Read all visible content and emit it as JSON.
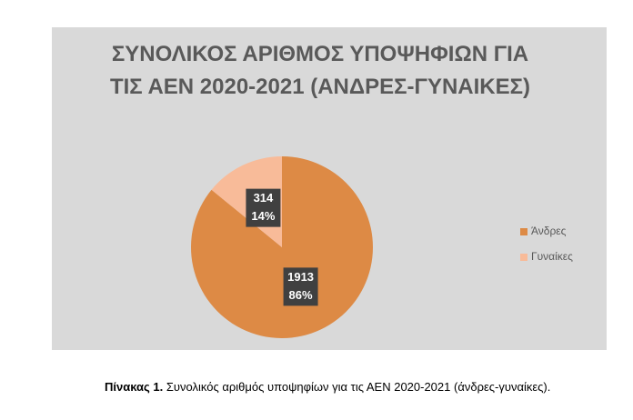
{
  "chart_data": {
    "type": "pie",
    "title": "ΣΥΝΟΛΙΚΟΣ ΑΡΙΘΜΟΣ ΥΠΟΨΗΦΙΩΝ ΓΙΑ ΤΙΣ ΑΕΝ 2020-2021 (ΑΝΔΡΕΣ-ΓΥΝΑΙΚΕΣ)",
    "categories": [
      "Άνδρες",
      "Γυναίκες"
    ],
    "values": [
      1913,
      314
    ],
    "percents": [
      86,
      14
    ],
    "percent_labels": [
      "86%",
      "14%"
    ],
    "colors": [
      "#dd8a45",
      "#f8bb99"
    ],
    "legend": "right"
  },
  "caption": {
    "label": "Πίνακας 1.",
    "text": "Συνολικός αριθμός υποψηφίων για τις ΑΕΝ 2020-2021 (άνδρες-γυναίκες)."
  }
}
